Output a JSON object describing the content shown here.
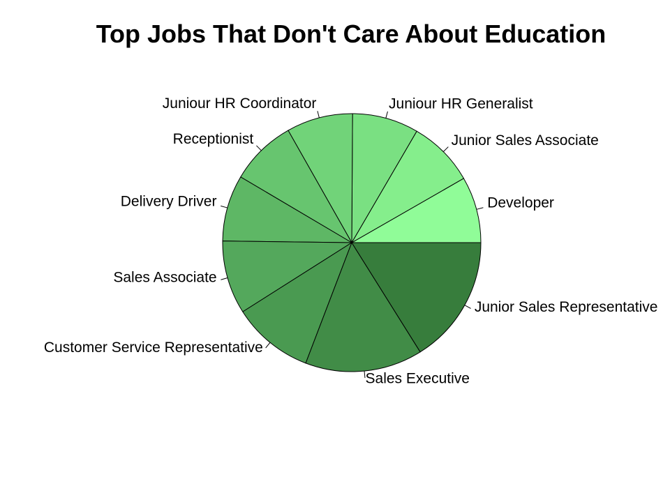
{
  "chart_data": {
    "type": "pie",
    "title": "Top Jobs That Don't Care About Education",
    "direction": "counterclockwise",
    "start": "3 o'clock",
    "slices": [
      {
        "label": "Developer",
        "value": 8.3,
        "color": "#90fc98"
      },
      {
        "label": "Junior Sales Associate",
        "value": 8.3,
        "color": "#85ee8c"
      },
      {
        "label": "Juniour HR Generalist",
        "value": 8.3,
        "color": "#7ae082"
      },
      {
        "label": "Juniour HR Coordinator",
        "value": 8.3,
        "color": "#71d379"
      },
      {
        "label": "Receptionist",
        "value": 8.3,
        "color": "#67c56f"
      },
      {
        "label": "Delivery Driver",
        "value": 8.3,
        "color": "#5eb765"
      },
      {
        "label": "Sales Associate",
        "value": 9.2,
        "color": "#54a85c"
      },
      {
        "label": "Customer Service Representative",
        "value": 10.2,
        "color": "#4a9a51"
      },
      {
        "label": "Sales Executive",
        "value": 14.7,
        "color": "#418c47"
      },
      {
        "label": "Junior Sales Representative",
        "value": 16.1,
        "color": "#377d3c"
      }
    ]
  }
}
